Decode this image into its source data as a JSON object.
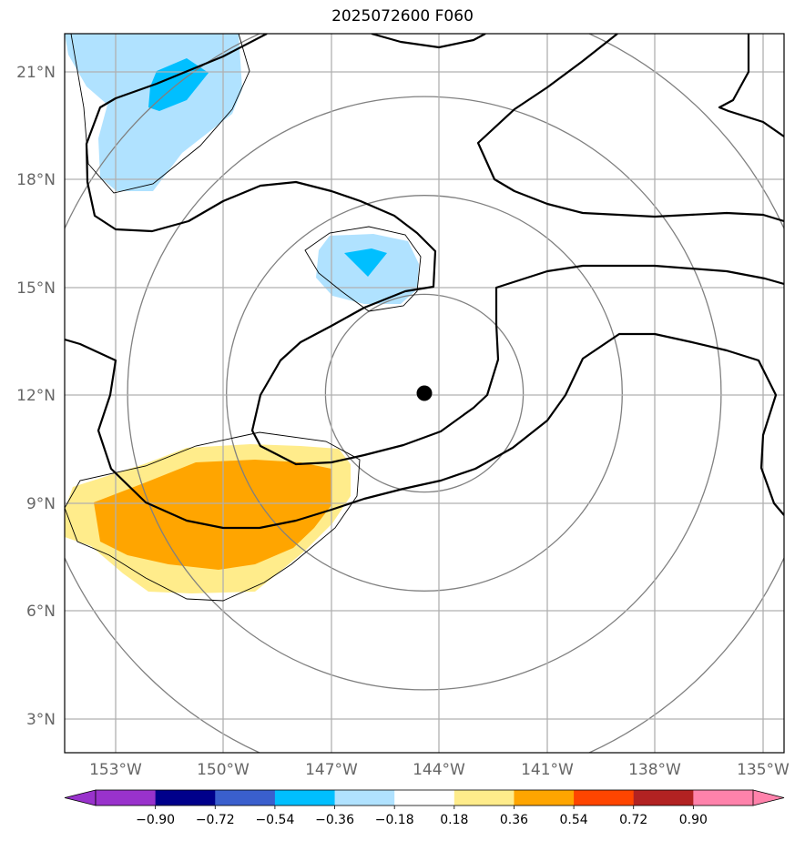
{
  "title": "2025072600 F060",
  "map": {
    "lat_ticks": [
      "3°N",
      "6°N",
      "9°N",
      "12°N",
      "15°N",
      "18°N",
      "21°N"
    ],
    "lon_ticks": [
      "153°W",
      "150°W",
      "147°W",
      "144°W",
      "141°W",
      "138°W",
      "135°W"
    ],
    "center_marker": {
      "lat": 12.0,
      "lon": -144.4
    },
    "range_ring_radii_deg": [
      2.75,
      5.5,
      8.25,
      11
    ]
  },
  "colorbar": {
    "ticks": [
      "−0.90",
      "−0.72",
      "−0.54",
      "−0.36",
      "−0.18",
      "0.18",
      "0.36",
      "0.54",
      "0.72",
      "0.90"
    ],
    "bins": [
      "#9932cc",
      "#00008b",
      "#3a5fcd",
      "#00bfff",
      "#b0e2ff",
      "#ffffff",
      "#ffec8b",
      "#ffa500",
      "#ff4500",
      "#b22222",
      "#ff82ab"
    ],
    "under_color": "#9932cc",
    "over_color": "#ff82ab"
  },
  "colors": {
    "light_blue": "#b0e2ff",
    "blue": "#00bfff",
    "light_yellow": "#ffec8b",
    "orange": "#ffa500",
    "contour": "#000000",
    "grid": "#b0b0b0",
    "rings": "#808080"
  }
}
